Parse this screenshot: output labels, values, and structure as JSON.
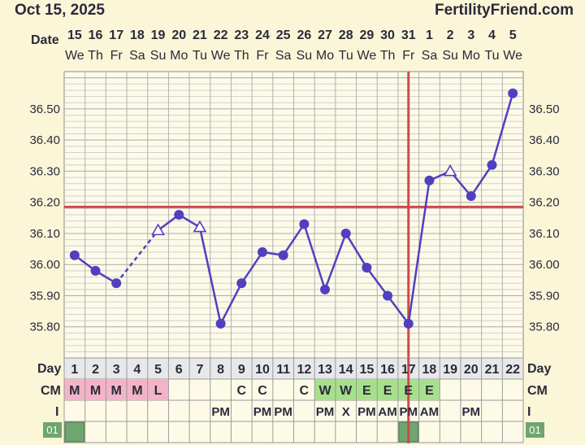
{
  "header": {
    "date_title": "Oct 15, 2025",
    "site": "FertilityFriend.com",
    "date_row_label": "Date",
    "day_row_label": "Day",
    "cm_row_label": "CM",
    "i_row_label": "I",
    "marker_label": "01"
  },
  "dates": [
    "15",
    "16",
    "17",
    "18",
    "19",
    "20",
    "21",
    "22",
    "23",
    "24",
    "25",
    "26",
    "27",
    "28",
    "29",
    "30",
    "31",
    "1",
    "2",
    "3",
    "4",
    "5"
  ],
  "weekdays": [
    "We",
    "Th",
    "Fr",
    "Sa",
    "Su",
    "Mo",
    "Tu",
    "We",
    "Th",
    "Fr",
    "Sa",
    "Su",
    "Mo",
    "Tu",
    "We",
    "Th",
    "Fr",
    "Sa",
    "Su",
    "Mo",
    "Tu",
    "We"
  ],
  "cycle_days": [
    "1",
    "2",
    "3",
    "4",
    "5",
    "6",
    "7",
    "8",
    "9",
    "10",
    "11",
    "12",
    "13",
    "14",
    "15",
    "16",
    "17",
    "18",
    "19",
    "20",
    "21",
    "22"
  ],
  "cm_values": [
    "M",
    "M",
    "M",
    "M",
    "L",
    "",
    "",
    "",
    "C",
    "C",
    "",
    "C",
    "W",
    "W",
    "E",
    "E",
    "E",
    "E",
    "",
    "",
    "",
    ""
  ],
  "cm_colors": [
    "#f4b4c8",
    "#f4b4c8",
    "#f4b4c8",
    "#f4b4c8",
    "#f4b4c8",
    "",
    "",
    "",
    "",
    "",
    "",
    "",
    "#a6e08c",
    "#a6e08c",
    "#a6e08c",
    "#a6e08c",
    "#a6e08c",
    "#a6e08c",
    "",
    "",
    "",
    ""
  ],
  "i_values": [
    "",
    "",
    "",
    "",
    "",
    "",
    "",
    "PM",
    "",
    "PM",
    "PM",
    "",
    "PM",
    "X",
    "PM",
    "AM",
    "PM",
    "AM",
    "",
    "PM",
    "",
    ""
  ],
  "marker_cells": [
    1,
    17
  ],
  "chart_data": {
    "type": "line",
    "x": [
      1,
      2,
      3,
      4,
      5,
      6,
      7,
      8,
      9,
      10,
      11,
      12,
      13,
      14,
      15,
      16,
      17,
      18,
      19,
      20,
      21,
      22
    ],
    "temps": [
      36.03,
      35.98,
      35.94,
      null,
      36.11,
      36.16,
      36.12,
      35.81,
      35.94,
      36.04,
      36.03,
      36.13,
      35.92,
      36.1,
      35.99,
      35.9,
      35.81,
      36.27,
      36.3,
      36.22,
      36.32,
      36.55
    ],
    "open_points": [
      5,
      7,
      19
    ],
    "dashed_segment": [
      3,
      5
    ],
    "coverline": 36.185,
    "ovulation_day": 17,
    "ylim": [
      35.7,
      36.62
    ],
    "yticks": [
      "35.80",
      "35.90",
      "36.00",
      "36.10",
      "36.20",
      "36.30",
      "36.40",
      "36.50"
    ],
    "line_color": "#5040c0",
    "coverline_color": "#d24848",
    "grid_color": "#b8b8b8"
  }
}
